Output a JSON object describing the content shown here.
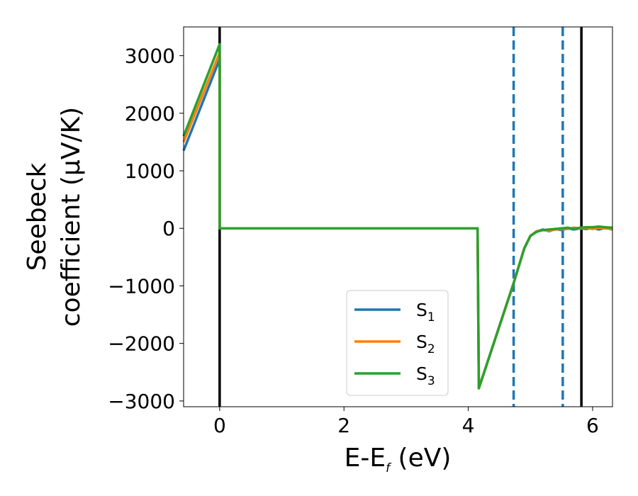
{
  "chart_data": {
    "type": "line",
    "xlabel": {
      "main": "E-E",
      "sub": "f",
      "unit": " (eV)"
    },
    "ylabel": {
      "line1": "Seebeck",
      "line2": "coefficient  (μV/K)"
    },
    "xlim": [
      -0.58,
      6.32
    ],
    "ylim": [
      -3100,
      3500
    ],
    "x_ticks": [
      0,
      2,
      4,
      6
    ],
    "x_tick_labels": [
      "0",
      "2",
      "4",
      "6"
    ],
    "y_ticks": [
      -3000,
      -2000,
      -1000,
      0,
      1000,
      2000,
      3000
    ],
    "y_tick_labels": [
      "−3000",
      "−2000",
      "−1000",
      "0",
      "1000",
      "2000",
      "3000"
    ],
    "grid": false,
    "legend_placement": "lower-center",
    "vlines": [
      {
        "x": 0.0,
        "style": "solid",
        "color": "#000000"
      },
      {
        "x": 5.82,
        "style": "solid",
        "color": "#000000"
      },
      {
        "x": 4.73,
        "style": "dashed",
        "color": "#1f77b4"
      },
      {
        "x": 5.52,
        "style": "dashed",
        "color": "#1f77b4"
      }
    ],
    "series": [
      {
        "name": "S",
        "sub": "1",
        "color": "#1f77b4",
        "points": [
          [
            -0.58,
            1350
          ],
          [
            0.0,
            2940
          ],
          [
            0.0,
            0
          ],
          [
            4.15,
            0
          ],
          [
            4.17,
            -2780
          ],
          [
            4.73,
            -950
          ],
          [
            4.9,
            -350
          ],
          [
            5.0,
            -130
          ],
          [
            5.1,
            -60
          ],
          [
            5.2,
            -20
          ],
          [
            5.3,
            -50
          ],
          [
            5.4,
            -10
          ],
          [
            5.5,
            -30
          ],
          [
            5.6,
            0
          ],
          [
            5.7,
            -20
          ],
          [
            5.8,
            0
          ],
          [
            5.9,
            -10
          ],
          [
            6.0,
            10
          ],
          [
            6.1,
            -20
          ],
          [
            6.2,
            10
          ],
          [
            6.32,
            -20
          ]
        ]
      },
      {
        "name": "S",
        "sub": "2",
        "color": "#ff7f0e",
        "points": [
          [
            -0.58,
            1500
          ],
          [
            0.0,
            3050
          ],
          [
            0.0,
            0
          ],
          [
            4.15,
            0
          ],
          [
            4.17,
            -2780
          ],
          [
            4.73,
            -950
          ],
          [
            4.9,
            -350
          ],
          [
            5.0,
            -130
          ],
          [
            5.1,
            -50
          ],
          [
            5.2,
            -30
          ],
          [
            5.3,
            -40
          ],
          [
            5.4,
            -20
          ],
          [
            5.5,
            -10
          ],
          [
            5.6,
            -10
          ],
          [
            5.7,
            10
          ],
          [
            5.8,
            0
          ],
          [
            5.9,
            10
          ],
          [
            6.0,
            -10
          ],
          [
            6.1,
            10
          ],
          [
            6.2,
            0
          ],
          [
            6.32,
            -10
          ]
        ]
      },
      {
        "name": "S",
        "sub": "3",
        "color": "#2ca02c",
        "points": [
          [
            -0.58,
            1600
          ],
          [
            0.0,
            3200
          ],
          [
            0.0,
            0
          ],
          [
            4.15,
            0
          ],
          [
            4.17,
            -2780
          ],
          [
            4.73,
            -950
          ],
          [
            4.9,
            -350
          ],
          [
            5.0,
            -130
          ],
          [
            5.1,
            -60
          ],
          [
            5.2,
            -30
          ],
          [
            5.3,
            -20
          ],
          [
            5.4,
            -10
          ],
          [
            5.5,
            0
          ],
          [
            5.6,
            10
          ],
          [
            5.7,
            -10
          ],
          [
            5.8,
            10
          ],
          [
            5.9,
            20
          ],
          [
            6.0,
            20
          ],
          [
            6.1,
            30
          ],
          [
            6.2,
            20
          ],
          [
            6.32,
            10
          ]
        ]
      }
    ]
  }
}
